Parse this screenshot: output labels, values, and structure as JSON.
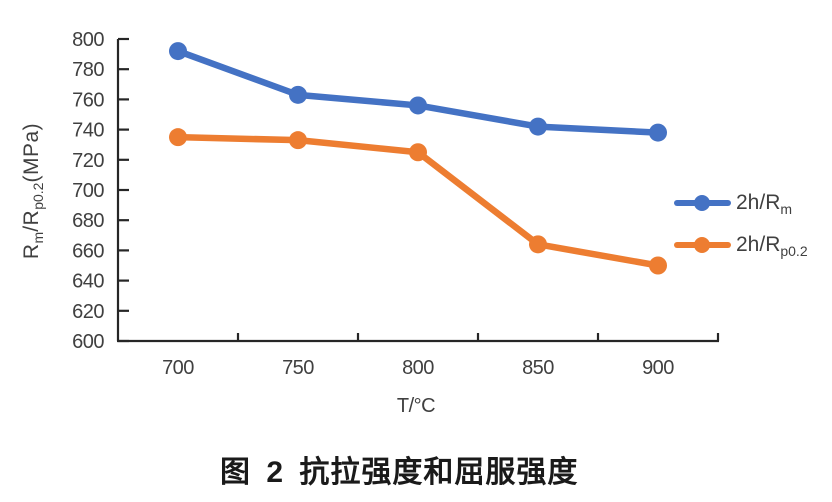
{
  "chart_data": {
    "type": "line",
    "title": "图 2 抗拉强度和屈服强度",
    "xlabel": "T/°C",
    "ylabel": "Rm/Rp0.2(MPa)",
    "x": [
      700,
      750,
      800,
      850,
      900
    ],
    "xticklabels": [
      "700",
      "750",
      "800",
      "850",
      "900"
    ],
    "yticks": [
      600,
      620,
      640,
      660,
      680,
      700,
      720,
      740,
      760,
      780,
      800
    ],
    "ylim": [
      600,
      800
    ],
    "grid": false,
    "legend_position": "right-middle",
    "series": [
      {
        "name": "2h/Rm",
        "color": "#4472C4",
        "values": [
          792,
          763,
          756,
          742,
          738
        ]
      },
      {
        "name": "2h/Rp0.2",
        "color": "#ED7D31",
        "values": [
          735,
          733,
          725,
          664,
          650
        ]
      }
    ]
  },
  "labels": {
    "y_axis_title": {
      "base1": "R",
      "sub1": "m",
      "base2": "/R",
      "sub2": "p0.2",
      "unit": "(MPa)"
    },
    "x_axis_title": "T/°C",
    "legend": [
      {
        "prefix": "2h/R",
        "sub": "m"
      },
      {
        "prefix": "2h/R",
        "sub": "p0.2"
      }
    ],
    "caption": "图 2 抗拉强度和屈服强度"
  },
  "colors": {
    "series_blue": "#4472C4",
    "series_orange": "#ED7D31",
    "axis": "#262626",
    "text": "#404040",
    "caption_text": "#1A1A1A"
  }
}
